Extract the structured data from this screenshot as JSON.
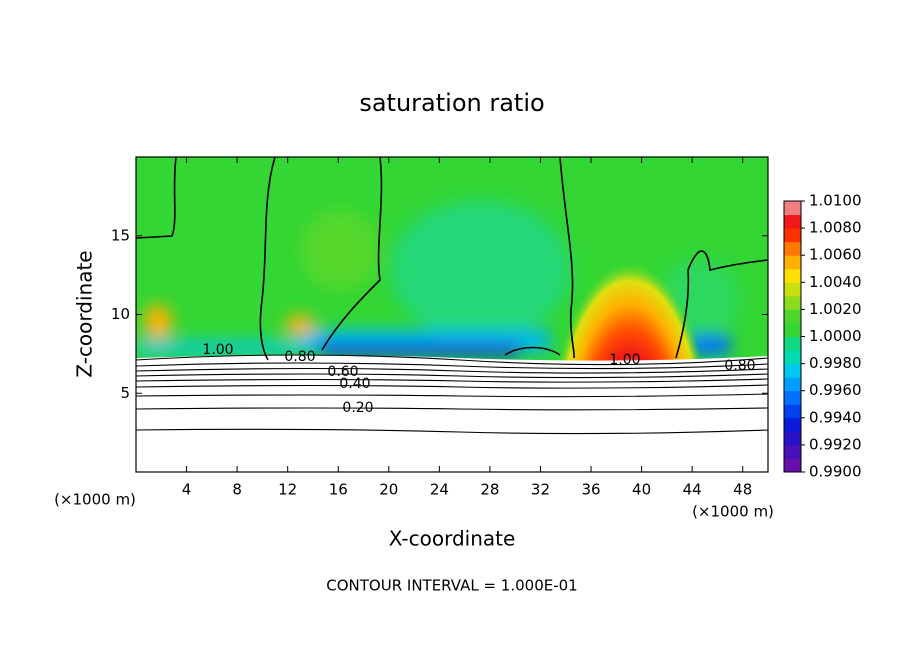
{
  "chart_data": {
    "type": "contour",
    "title": "saturation ratio",
    "x_label": "X-coordinate",
    "y_label": "Z-coordinate",
    "x_unit_label": "(×1000 m)",
    "x_unit_label_right": "(×1000 m)",
    "footnote": "CONTOUR INTERVAL = 1.000E-01",
    "xlim": [
      0,
      50
    ],
    "xticks": [
      4,
      8,
      12,
      16,
      20,
      24,
      28,
      32,
      36,
      40,
      44,
      48
    ],
    "ylim": [
      0,
      20
    ],
    "yticks": [
      5,
      10,
      15
    ],
    "contour_labels": [
      "1.00",
      "0.80",
      "0.60",
      "0.40",
      "0.20",
      "1.00",
      "0.80"
    ],
    "colorbar": {
      "clim": [
        0.99,
        1.01
      ],
      "ticks": [
        {
          "value": 0.99,
          "label": "0.9900"
        },
        {
          "value": 0.992,
          "label": "0.9920"
        },
        {
          "value": 0.994,
          "label": "0.9940"
        },
        {
          "value": 0.996,
          "label": "0.9960"
        },
        {
          "value": 0.998,
          "label": "0.9980"
        },
        {
          "value": 1.0,
          "label": "1.0000"
        },
        {
          "value": 1.002,
          "label": "1.0020"
        },
        {
          "value": 1.004,
          "label": "1.0040"
        },
        {
          "value": 1.006,
          "label": "1.0060"
        },
        {
          "value": 1.008,
          "label": "1.0080"
        },
        {
          "value": 1.01,
          "label": "1.0100"
        }
      ],
      "colors": [
        "#6a0dad",
        "#4b0fb8",
        "#2a12c4",
        "#0a1ad8",
        "#0040f0",
        "#0070ff",
        "#009fff",
        "#00c8f0",
        "#00dcb0",
        "#10d880",
        "#33d633",
        "#4cd62c",
        "#8cdc20",
        "#c8e010",
        "#ffe000",
        "#ffb000",
        "#ff7800",
        "#ff3000",
        "#f01818",
        "#f08080"
      ]
    }
  }
}
